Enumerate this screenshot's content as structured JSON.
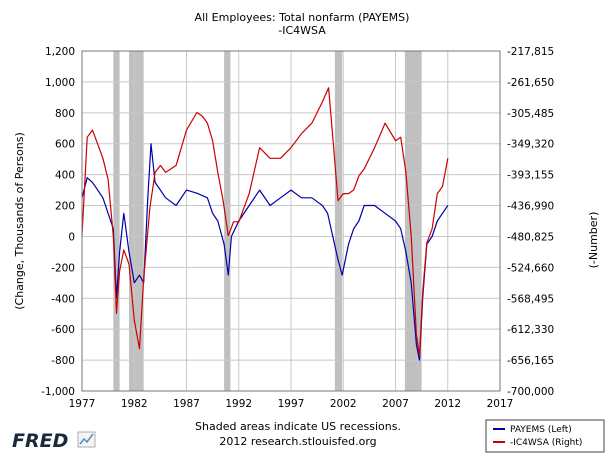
{
  "chart_data": {
    "type": "line",
    "title_line1": "All Employees: Total nonfarm (PAYEMS)",
    "title_line2": "-IC4WSA",
    "ylabel_left": "(Change, Thousands of Persons)",
    "ylabel_right": "(-Number)",
    "xlim": [
      1977,
      2017
    ],
    "ylim_left": [
      -1000,
      1200
    ],
    "ylim_right": [
      -700000,
      -217815
    ],
    "x_ticks": [
      "1977",
      "1982",
      "1987",
      "1992",
      "1997",
      "2002",
      "2007",
      "2012",
      "2017"
    ],
    "x_tick_values": [
      1977,
      1982,
      1987,
      1992,
      1997,
      2002,
      2007,
      2012,
      2017
    ],
    "y_left_ticks": [
      "1,200",
      "1,000",
      "800",
      "600",
      "400",
      "200",
      "0",
      "-200",
      "-400",
      "-600",
      "-800",
      "-1,000"
    ],
    "y_left_tick_values": [
      1200,
      1000,
      800,
      600,
      400,
      200,
      0,
      -200,
      -400,
      -600,
      -800,
      -1000
    ],
    "y_right_ticks": [
      "-217,815",
      "-261,650",
      "-305,485",
      "-349,320",
      "-393,155",
      "-436,990",
      "-480,825",
      "-524,660",
      "-568,495",
      "-612,330",
      "-656,165",
      "-700,000"
    ],
    "recessions": [
      [
        1980.0,
        1980.6
      ],
      [
        1981.5,
        1982.9
      ],
      [
        1990.6,
        1991.2
      ],
      [
        2001.2,
        2001.9
      ],
      [
        2007.9,
        2009.5
      ]
    ],
    "series": [
      {
        "name": "PAYEMS (Left)",
        "axis": "left",
        "color": "#0000aa",
        "x": [
          1977,
          1977.5,
          1978,
          1978.5,
          1979,
          1979.5,
          1980,
          1980.3,
          1980.6,
          1981,
          1981.5,
          1982,
          1982.5,
          1982.9,
          1983.3,
          1983.6,
          1984,
          1984.5,
          1985,
          1986,
          1987,
          1988,
          1989,
          1989.5,
          1990,
          1990.6,
          1991,
          1991.3,
          1992,
          1993,
          1994,
          1995,
          1996,
          1997,
          1998,
          1999,
          2000,
          2000.5,
          2001,
          2001.5,
          2001.9,
          2002.5,
          2003,
          2003.5,
          2004,
          2005,
          2006,
          2007,
          2007.5,
          2008,
          2008.5,
          2009,
          2009.3,
          2009.6,
          2010,
          2010.5,
          2011,
          2011.5,
          2012
        ],
        "values": [
          250,
          380,
          350,
          300,
          250,
          150,
          50,
          -400,
          -100,
          150,
          -100,
          -300,
          -250,
          -300,
          250,
          600,
          350,
          300,
          250,
          200,
          300,
          280,
          250,
          150,
          100,
          -50,
          -250,
          0,
          100,
          200,
          300,
          200,
          250,
          300,
          250,
          250,
          200,
          150,
          0,
          -150,
          -250,
          -50,
          50,
          100,
          200,
          200,
          150,
          100,
          50,
          -100,
          -300,
          -700,
          -800,
          -400,
          -50,
          0,
          100,
          150,
          200
        ]
      },
      {
        "name": "-IC4WSA (Right)",
        "axis": "right",
        "color": "#cc0000",
        "x": [
          1977,
          1977.5,
          1978,
          1978.5,
          1979,
          1979.5,
          1980,
          1980.3,
          1980.6,
          1981,
          1981.5,
          1982,
          1982.5,
          1982.9,
          1983.5,
          1984,
          1984.5,
          1985,
          1986,
          1987,
          1988,
          1988.5,
          1989,
          1989.5,
          1990,
          1990.5,
          1991,
          1991.5,
          1992,
          1992.5,
          1993,
          1994,
          1995,
          1996,
          1997,
          1998,
          1999,
          2000,
          2000.6,
          2001,
          2001.5,
          2002,
          2002.5,
          2003,
          2003.5,
          2004,
          2005,
          2006,
          2007,
          2007.5,
          2008,
          2008.5,
          2009,
          2009.3,
          2009.6,
          2010,
          2010.5,
          2011,
          2011.5,
          2012
        ],
        "values": [
          -480000,
          -340000,
          -330000,
          -350000,
          -370000,
          -400000,
          -480000,
          -590000,
          -530000,
          -500000,
          -520000,
          -600000,
          -640000,
          -540000,
          -440000,
          -390000,
          -380000,
          -390000,
          -380000,
          -330000,
          -305000,
          -310000,
          -320000,
          -345000,
          -390000,
          -430000,
          -480000,
          -460000,
          -460000,
          -440000,
          -420000,
          -355000,
          -370000,
          -370000,
          -355000,
          -335000,
          -320000,
          -290000,
          -270000,
          -340000,
          -430000,
          -420000,
          -420000,
          -415000,
          -395000,
          -385000,
          -355000,
          -320000,
          -345000,
          -340000,
          -390000,
          -480000,
          -620000,
          -650000,
          -560000,
          -490000,
          -470000,
          -420000,
          -410000,
          -370000
        ]
      }
    ],
    "legend_position": "bottom-right",
    "grid": true
  },
  "footer": {
    "logo_text": "FRED",
    "note_line1": "Shaded areas indicate US recessions.",
    "note_line2": "2012 research.stlouisfed.org"
  },
  "colors": {
    "payems": "#0000aa",
    "ic4wsa": "#cc0000",
    "recession": "#c0c0c0",
    "grid": "#c8c8c8",
    "logo": "#1a2a3a"
  }
}
